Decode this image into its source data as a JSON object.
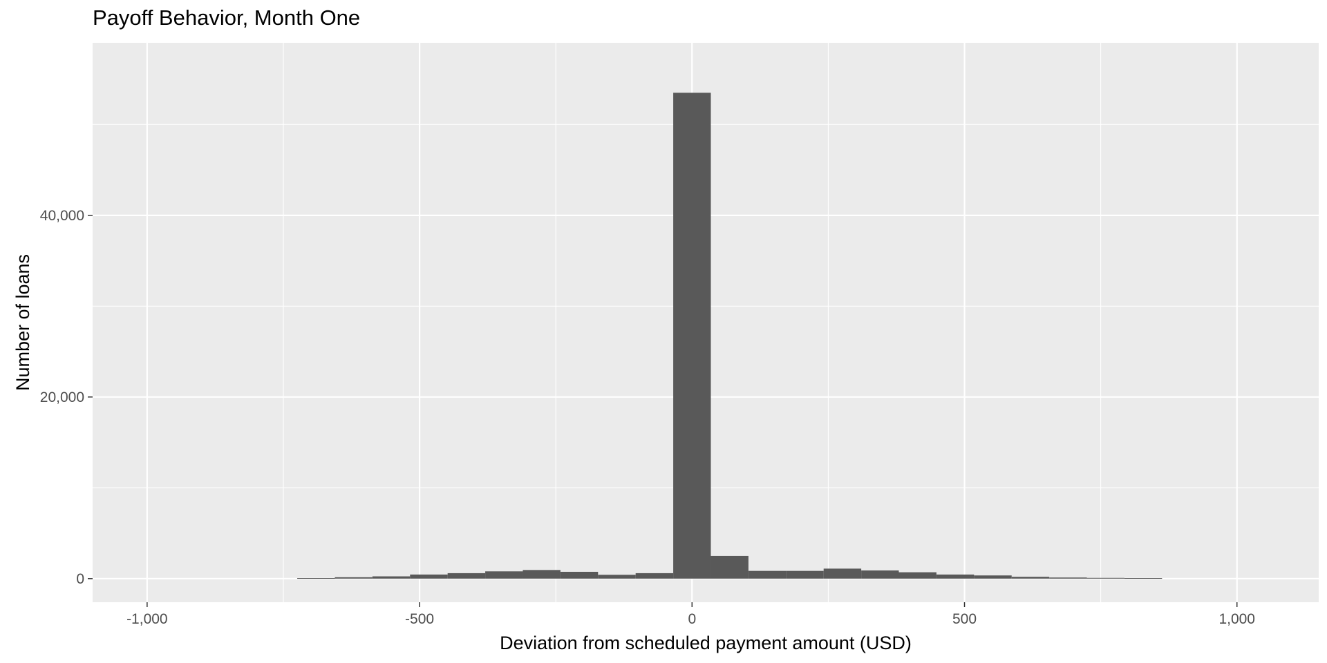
{
  "chart_data": {
    "type": "bar",
    "title": "Payoff Behavior, Month One",
    "xlabel": "Deviation from scheduled payment amount (USD)",
    "ylabel": "Number of loans",
    "xlim": [
      -1100,
      1150
    ],
    "ylim": [
      -2600,
      59000
    ],
    "x_ticks": [
      -1000,
      -500,
      0,
      500,
      1000
    ],
    "x_tick_labels": [
      "-1,000",
      "-500",
      "0",
      "500",
      "1,000"
    ],
    "y_ticks": [
      0,
      20000,
      40000
    ],
    "y_tick_labels": [
      "0",
      "20,000",
      "40,000"
    ],
    "x_minor_ticks": [
      -750,
      -250,
      250,
      750
    ],
    "y_minor_ticks": [
      10000,
      30000,
      50000
    ],
    "grid": true,
    "bin_width": 69,
    "bin_centers": [
      -690,
      -621,
      -552,
      -483,
      -414,
      -345,
      -276,
      -207,
      -138,
      -69,
      0,
      69,
      138,
      207,
      276,
      345,
      414,
      483,
      552,
      621,
      690,
      759,
      828
    ],
    "values": [
      60,
      150,
      250,
      450,
      600,
      800,
      950,
      750,
      420,
      600,
      53500,
      2500,
      850,
      850,
      1100,
      900,
      700,
      450,
      350,
      200,
      120,
      80,
      60
    ],
    "bar_color": "#595959",
    "panel_color": "#ebebeb",
    "grid_color": "#ffffff"
  }
}
